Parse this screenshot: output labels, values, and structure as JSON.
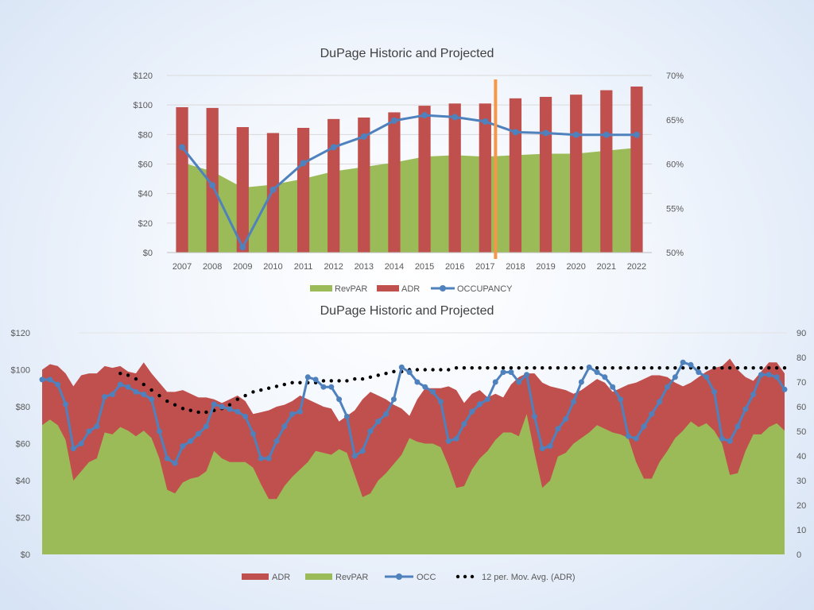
{
  "chart_data": [
    {
      "type": "bar",
      "title": "DuPage Historic and Projected",
      "categories": [
        "2007",
        "2008",
        "2009",
        "2010",
        "2011",
        "2012",
        "2013",
        "2014",
        "2015",
        "2016",
        "2017",
        "2018",
        "2019",
        "2020",
        "2021",
        "2022"
      ],
      "y_left": {
        "ticks": [
          "$0",
          "$20",
          "$40",
          "$60",
          "$80",
          "$100",
          "$120"
        ],
        "range": [
          0,
          120
        ]
      },
      "y_right": {
        "ticks": [
          "50%",
          "55%",
          "60%",
          "65%",
          "70%"
        ],
        "range": [
          50,
          70
        ]
      },
      "series": [
        {
          "name": "RevPAR",
          "kind": "area",
          "axis": "left",
          "color": "#9bbb59",
          "values": [
            61,
            55,
            44,
            46,
            50,
            55,
            58,
            61,
            65,
            66,
            65,
            66,
            67,
            67,
            69,
            71
          ]
        },
        {
          "name": "ADR",
          "kind": "bar",
          "axis": "left",
          "color": "#c0504d",
          "values": [
            98.5,
            98,
            85,
            81,
            84.5,
            90.5,
            91.5,
            95,
            99.5,
            101,
            101,
            104.5,
            105.5,
            107,
            110,
            112.5
          ]
        },
        {
          "name": "OCCUPANCY",
          "kind": "line",
          "axis": "right",
          "color": "#4f81bd",
          "values": [
            61.9,
            57.6,
            50.6,
            57.1,
            60.1,
            61.9,
            63.1,
            64.9,
            65.5,
            65.3,
            64.8,
            63.6,
            63.5,
            63.3,
            63.3,
            63.3
          ]
        }
      ],
      "annotation": {
        "type": "vertical-marker",
        "color": "#f79646",
        "between": [
          "2017",
          "2018"
        ]
      },
      "legend": {
        "position": "bottom",
        "items": [
          "RevPAR",
          "ADR",
          "OCCUPANCY"
        ]
      }
    },
    {
      "type": "area",
      "title": "DuPage Historic and Projected",
      "x": "periods 1-96 (unlabeled)",
      "y_left": {
        "ticks": [
          "$0",
          "$20",
          "$40",
          "$60",
          "$80",
          "$100",
          "$120"
        ],
        "range": [
          0,
          120
        ]
      },
      "y_right": {
        "ticks": [
          "0",
          "10",
          "20",
          "30",
          "40",
          "50",
          "60",
          "70",
          "80",
          "90"
        ],
        "range": [
          0,
          90
        ]
      },
      "series": [
        {
          "name": "ADR",
          "kind": "area",
          "axis": "left",
          "color": "#c0504d",
          "values": [
            100,
            103,
            102,
            98,
            91,
            97,
            98,
            98,
            102,
            101,
            102,
            99,
            98,
            104,
            98,
            93,
            88,
            88,
            89,
            87,
            85,
            85,
            84,
            82,
            84,
            86,
            83,
            76,
            77,
            78,
            80,
            81,
            83,
            86,
            84,
            82,
            80,
            79,
            72,
            75,
            78,
            84,
            88,
            86,
            84,
            81,
            79,
            75,
            84,
            90,
            90,
            90,
            91,
            89,
            82,
            87,
            89,
            85,
            87,
            85,
            92,
            96,
            98,
            98,
            93,
            91,
            90,
            89,
            87,
            89,
            92,
            95,
            93,
            88,
            90,
            92,
            93,
            95,
            97,
            97,
            96,
            93,
            91,
            93,
            96,
            99,
            101,
            102,
            106,
            100,
            96,
            94,
            99,
            104,
            104,
            98
          ]
        },
        {
          "name": "RevPAR",
          "kind": "area",
          "axis": "left",
          "color": "#9bbb59",
          "values": [
            70,
            73,
            70,
            62,
            40,
            45,
            50,
            52,
            66,
            65,
            69,
            67,
            64,
            67,
            63,
            52,
            35,
            33,
            39,
            41,
            42,
            45,
            56,
            52,
            50,
            50,
            50,
            47,
            38,
            30,
            30,
            37,
            42,
            46,
            50,
            56,
            55,
            54,
            57,
            55,
            43,
            31,
            33,
            40,
            44,
            49,
            54,
            63,
            61,
            60,
            60,
            58,
            48,
            36,
            37,
            46,
            52,
            56,
            62,
            66,
            66,
            64,
            76,
            55,
            36,
            40,
            53,
            55,
            60,
            63,
            66,
            70,
            68,
            66,
            65,
            63,
            50,
            41,
            41,
            50,
            56,
            63,
            67,
            72,
            69,
            71,
            67,
            60,
            43,
            44,
            56,
            65,
            65,
            69,
            71,
            67
          ]
        },
        {
          "name": "OCC",
          "kind": "line",
          "axis": "right",
          "color": "#4f81bd",
          "values": [
            71,
            71,
            69,
            61,
            43,
            45,
            50,
            52,
            64,
            65,
            69,
            68,
            66,
            65,
            63,
            50,
            39,
            37,
            44,
            46,
            49,
            52,
            61,
            60,
            59,
            58,
            56,
            49,
            39,
            39,
            46,
            52,
            57,
            58,
            72,
            71,
            68,
            68,
            63,
            56,
            40,
            42,
            50,
            54,
            57,
            63,
            76,
            74,
            70,
            68,
            66,
            62,
            46,
            47,
            53,
            58,
            61,
            63,
            70,
            74,
            74,
            70,
            73,
            56,
            43,
            44,
            51,
            55,
            62,
            70,
            76,
            74,
            72,
            68,
            63,
            48,
            47,
            52,
            57,
            62,
            68,
            72,
            78,
            77,
            74,
            72,
            66,
            47,
            46,
            52,
            59,
            65,
            73,
            73,
            72,
            67
          ]
        },
        {
          "name": "12 per. Mov. Avg. (ADR)",
          "kind": "dotted-line",
          "axis": "left",
          "color": "#000000",
          "values": [
            98,
            97,
            95,
            92,
            89,
            86,
            83,
            81,
            79,
            78,
            77,
            77,
            78,
            79,
            81,
            84,
            86,
            88,
            89,
            90,
            91,
            92,
            93,
            93,
            93,
            93,
            94,
            94,
            94,
            94,
            95,
            95,
            96,
            97,
            98,
            99,
            99,
            100,
            100,
            100,
            100,
            100,
            100,
            101,
            101,
            101,
            101,
            101,
            101,
            101,
            101,
            101,
            101,
            101,
            101,
            101,
            101,
            101,
            101,
            101,
            101,
            101,
            101,
            101,
            101,
            101,
            101,
            101,
            101,
            101,
            101,
            101,
            101,
            101,
            101,
            101,
            101,
            101,
            101,
            101,
            101,
            101,
            101,
            101,
            101,
            101
          ]
        },
        {
          "series_note": ""
        }
      ],
      "legend": {
        "position": "bottom",
        "items": [
          "ADR",
          "RevPAR",
          "OCC",
          "12 per. Mov. Avg. (ADR)"
        ]
      }
    }
  ]
}
